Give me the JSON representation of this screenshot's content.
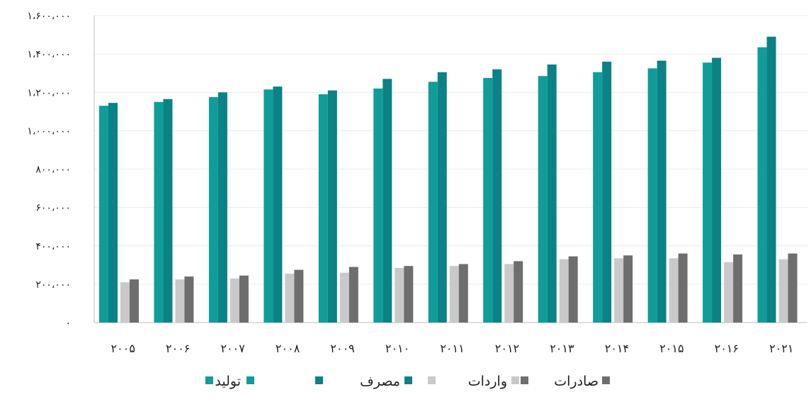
{
  "chart_data": {
    "type": "bar",
    "categories": [
      "۲۰۰۵",
      "۲۰۰۶",
      "۲۰۰۷",
      "۲۰۰۸",
      "۲۰۰۹",
      "۲۰۱۰",
      "۲۰۱۱",
      "۲۰۱۲",
      "۲۰۱۳",
      "۲۰۱۴",
      "۲۰۱۵",
      "۲۰۱۶",
      "۲۰۲۱"
    ],
    "series": [
      {
        "name": "تولید",
        "color": "#119C9A",
        "values": [
          1130000,
          1150000,
          1175000,
          1215000,
          1190000,
          1220000,
          1255000,
          1275000,
          1285000,
          1305000,
          1325000,
          1355000,
          1435000
        ]
      },
      {
        "name": "مصرف",
        "color": "#0B8285",
        "values": [
          1145000,
          1165000,
          1200000,
          1230000,
          1210000,
          1270000,
          1305000,
          1320000,
          1345000,
          1360000,
          1365000,
          1380000,
          1490000
        ]
      },
      {
        "name": "واردات",
        "color": "#C9C9C9",
        "values": [
          210000,
          225000,
          230000,
          255000,
          260000,
          285000,
          295000,
          305000,
          330000,
          335000,
          335000,
          315000,
          330000
        ]
      },
      {
        "name": "صادرات",
        "color": "#6E6E6E",
        "values": [
          225000,
          240000,
          245000,
          275000,
          290000,
          295000,
          305000,
          320000,
          345000,
          350000,
          360000,
          355000,
          360000
        ]
      }
    ],
    "ylim": [
      0,
      1600000
    ],
    "yticks": [
      0,
      200000,
      400000,
      600000,
      800000,
      1000000,
      1200000,
      1400000,
      1600000
    ],
    "ytick_labels": [
      "۰",
      "۲۰۰،۰۰۰",
      "۴۰۰،۰۰۰",
      "۶۰۰،۰۰۰",
      "۸۰۰،۰۰۰",
      "۱،۰۰۰،۰۰۰",
      "۱،۲۰۰،۰۰۰",
      "۱،۴۰۰،۰۰۰",
      "۱،۶۰۰،۰۰۰"
    ],
    "grid": true,
    "legend_position": "bottom",
    "legend_order": [
      "صادرات",
      "واردات",
      "مصرف",
      "تولید"
    ]
  }
}
